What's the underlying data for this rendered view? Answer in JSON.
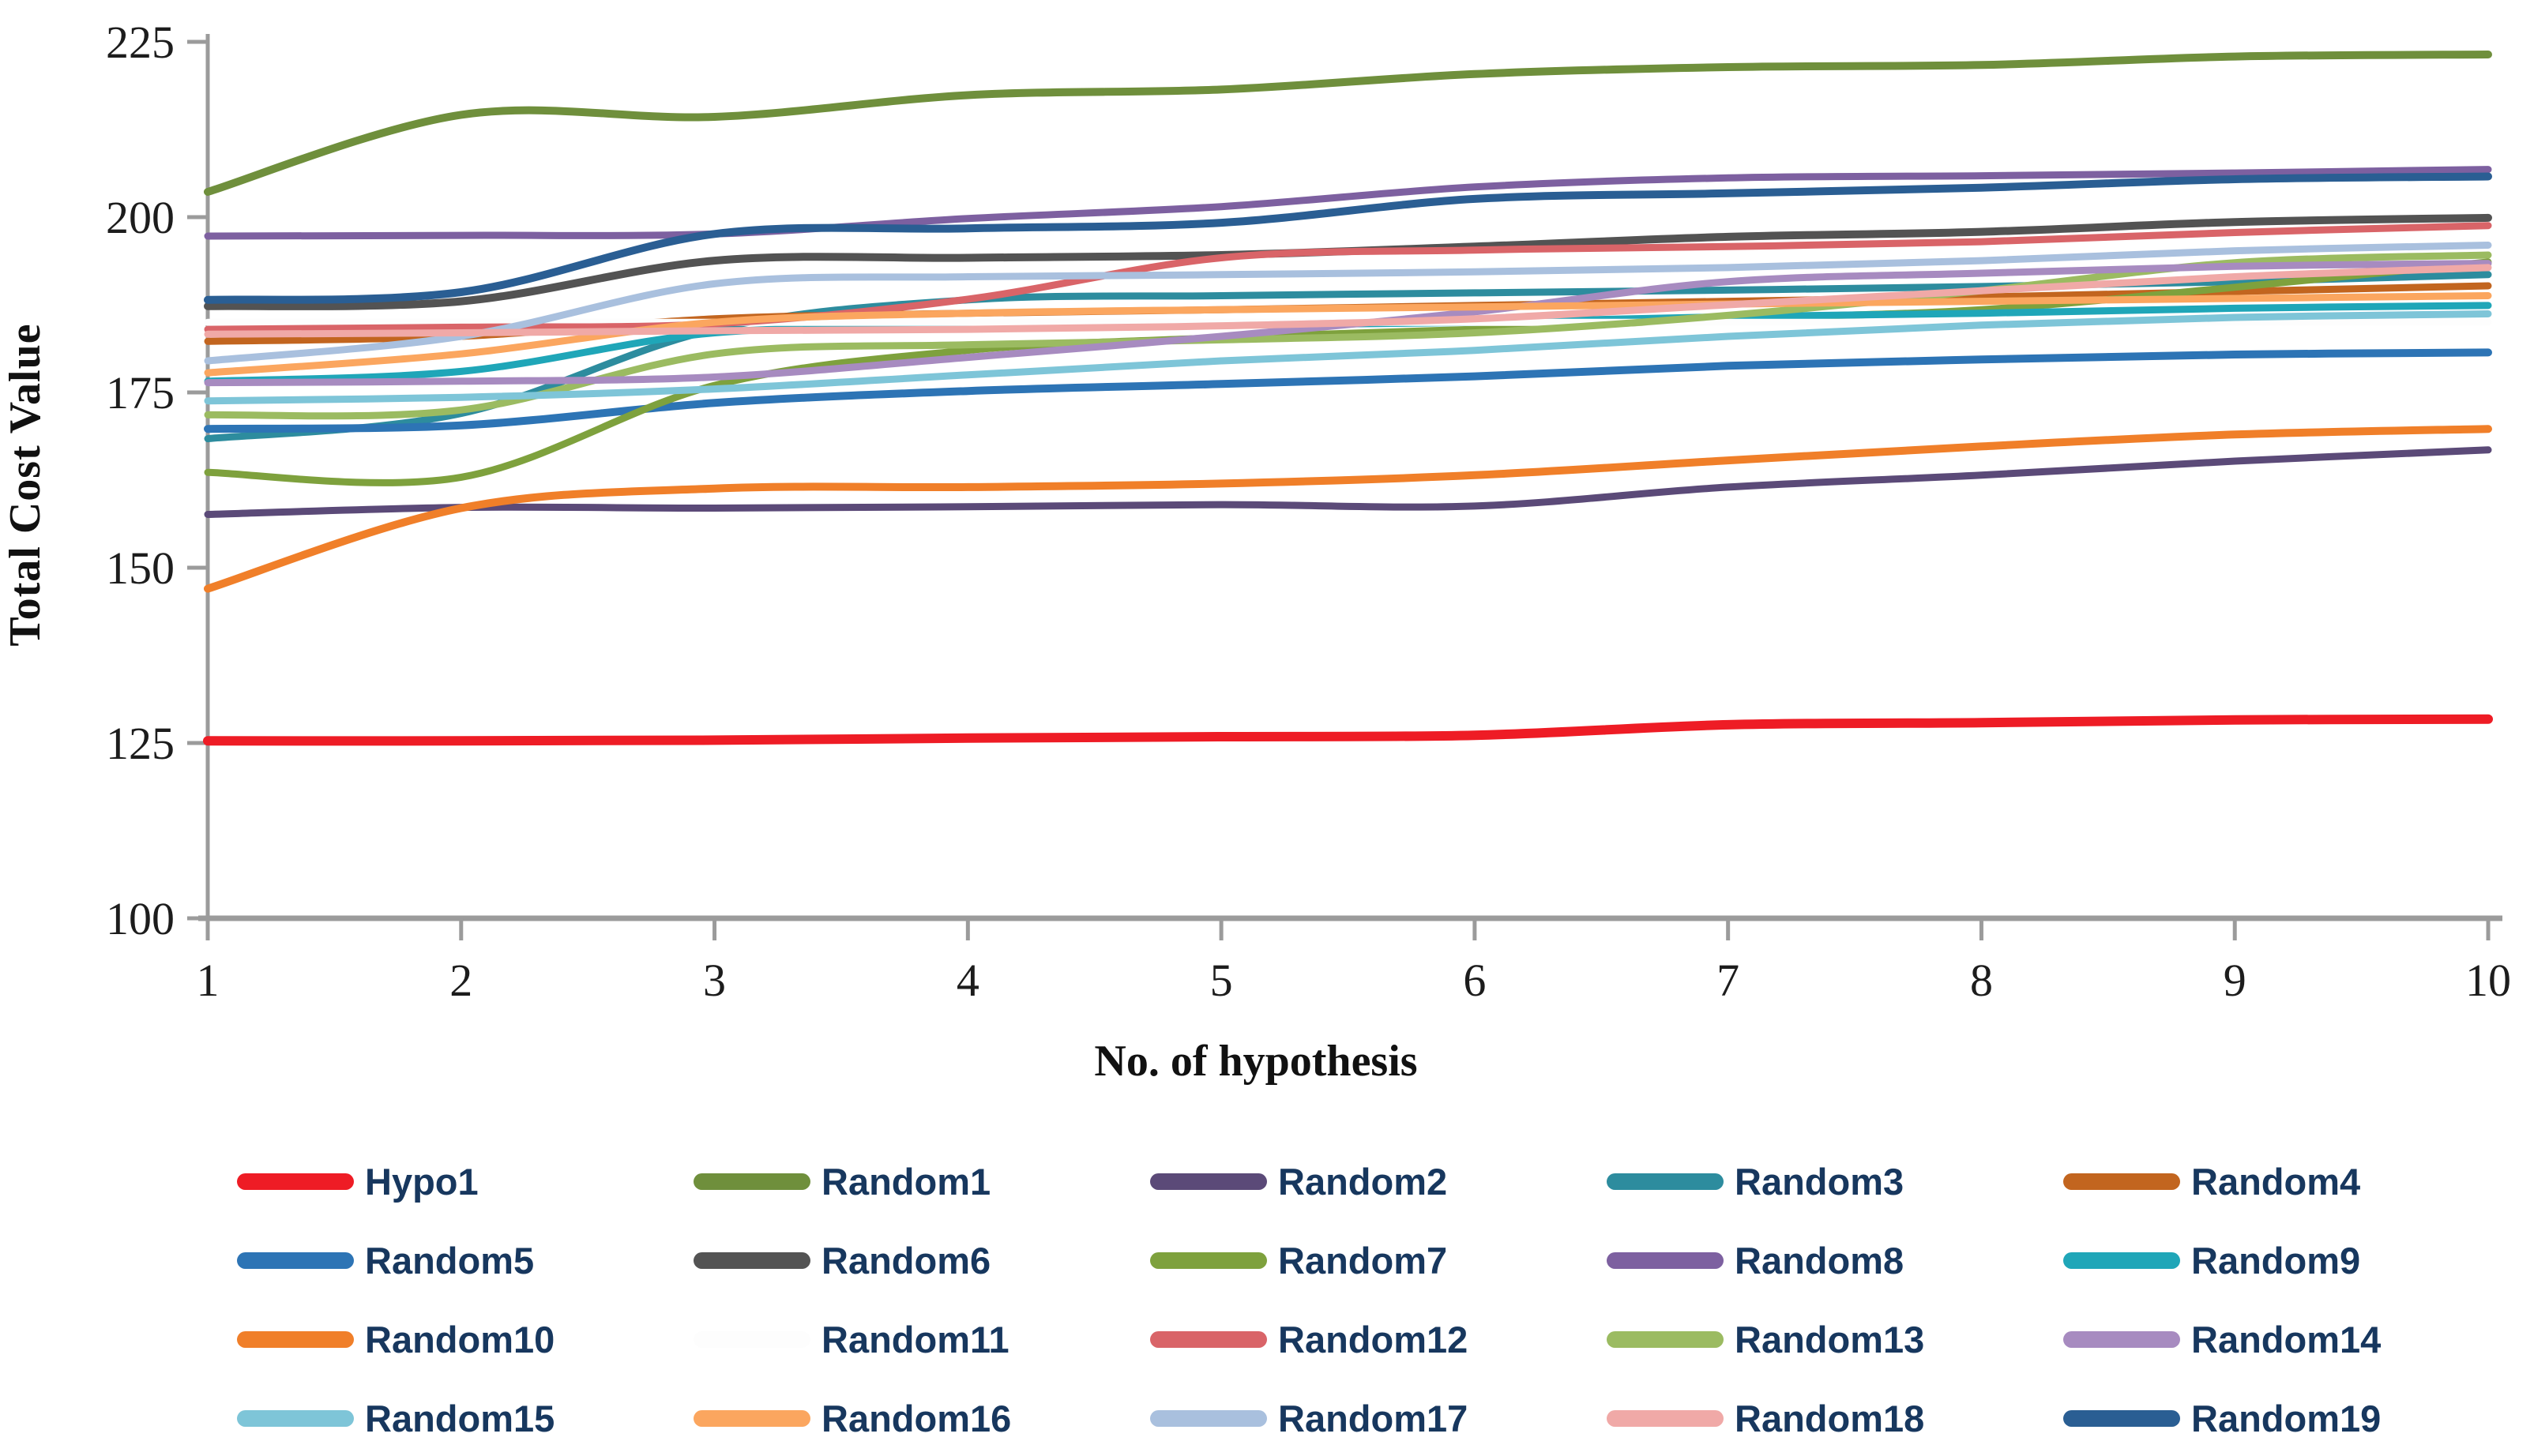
{
  "figure": {
    "background": "#ffffff",
    "axis_color": "#9b9b9b",
    "tick_text_color": "#1c1c1c",
    "legend_text_color": "#17375E"
  },
  "chart_data": {
    "type": "line",
    "smooth": true,
    "grid": false,
    "legend_position": "bottom",
    "title": "",
    "xlabel": "No. of  hypothesis",
    "ylabel": "Total Cost Value",
    "xlim": [
      1,
      10
    ],
    "ylim": [
      100,
      225
    ],
    "x_ticks": [
      1,
      2,
      3,
      4,
      5,
      6,
      7,
      8,
      9,
      10
    ],
    "y_ticks": [
      225,
      200,
      175,
      150,
      125,
      100
    ],
    "x": [
      1,
      2,
      3,
      4,
      5,
      6,
      7,
      8,
      9,
      10
    ],
    "series": [
      {
        "name": "Hypo1",
        "color": "#EE1C25",
        "width": 12,
        "values": [
          125.3,
          125.3,
          125.4,
          125.7,
          125.9,
          126.1,
          127.6,
          127.9,
          128.3,
          128.4
        ]
      },
      {
        "name": "Random1",
        "color": "#6F8F3C",
        "width": 10,
        "values": [
          203.6,
          214.6,
          214.3,
          217.4,
          218.2,
          220.4,
          221.4,
          221.7,
          222.9,
          223.2
        ]
      },
      {
        "name": "Random2",
        "color": "#5B4A78",
        "width": 9,
        "values": [
          157.6,
          158.6,
          158.5,
          158.7,
          159.0,
          158.8,
          161.5,
          163.2,
          165.2,
          166.8
        ]
      },
      {
        "name": "Random3",
        "color": "#2D8C9E",
        "width": 9,
        "values": [
          168.4,
          172.0,
          184.0,
          188.2,
          188.8,
          189.2,
          189.6,
          190.1,
          190.8,
          191.8
        ]
      },
      {
        "name": "Random4",
        "color": "#C2651F",
        "width": 9,
        "values": [
          182.3,
          183.0,
          185.5,
          186.3,
          186.8,
          187.4,
          188.0,
          188.6,
          189.4,
          190.2
        ]
      },
      {
        "name": "Random5",
        "color": "#2D74B5",
        "width": 10,
        "values": [
          169.8,
          170.3,
          173.5,
          175.2,
          176.2,
          177.3,
          178.8,
          179.7,
          180.4,
          180.7
        ]
      },
      {
        "name": "Random6",
        "color": "#535353",
        "width": 10,
        "values": [
          187.3,
          188.0,
          193.8,
          194.2,
          194.6,
          195.8,
          197.2,
          197.9,
          199.3,
          199.9
        ]
      },
      {
        "name": "Random7",
        "color": "#7EA13D",
        "width": 9,
        "values": [
          163.6,
          162.9,
          176.0,
          181.0,
          182.8,
          184.0,
          185.5,
          186.8,
          190.0,
          193.6
        ]
      },
      {
        "name": "Random8",
        "color": "#7D60A0",
        "width": 9,
        "values": [
          197.3,
          197.4,
          197.6,
          199.8,
          201.5,
          204.3,
          205.6,
          205.9,
          206.3,
          206.8
        ]
      },
      {
        "name": "Random9",
        "color": "#1FA6B8",
        "width": 9,
        "values": [
          176.6,
          178.0,
          183.5,
          184.2,
          184.6,
          185.0,
          185.8,
          186.3,
          187.0,
          187.4
        ]
      },
      {
        "name": "Random10",
        "color": "#F07F29",
        "width": 10,
        "values": [
          147.0,
          158.5,
          161.3,
          161.5,
          162.0,
          163.2,
          165.3,
          167.3,
          169.0,
          169.8
        ]
      },
      {
        "name": "Random11",
        "color": "#FDFDFD",
        "width": 9,
        "values": [
          185.0,
          185.0,
          185.0,
          185.0,
          185.0,
          185.0,
          185.0,
          185.0,
          185.0,
          185.0
        ]
      },
      {
        "name": "Random12",
        "color": "#D96468",
        "width": 9,
        "values": [
          184.0,
          184.3,
          184.8,
          188.3,
          194.2,
          195.3,
          195.8,
          196.5,
          197.8,
          198.8
        ]
      },
      {
        "name": "Random13",
        "color": "#9BBB61",
        "width": 9,
        "values": [
          171.8,
          172.5,
          180.5,
          181.8,
          182.5,
          183.5,
          186.0,
          189.5,
          193.5,
          194.6
        ]
      },
      {
        "name": "Random14",
        "color": "#A78BC0",
        "width": 9,
        "values": [
          176.4,
          176.6,
          177.2,
          180.0,
          183.0,
          186.5,
          190.8,
          192.0,
          193.0,
          193.4
        ]
      },
      {
        "name": "Random15",
        "color": "#7EC5D8",
        "width": 9,
        "values": [
          173.8,
          174.3,
          175.5,
          177.5,
          179.5,
          181.0,
          183.0,
          184.6,
          185.7,
          186.2
        ]
      },
      {
        "name": "Random16",
        "color": "#FBA65F",
        "width": 9,
        "values": [
          177.8,
          180.5,
          185.0,
          186.3,
          186.8,
          187.2,
          187.6,
          188.0,
          188.4,
          188.8
        ]
      },
      {
        "name": "Random17",
        "color": "#A9C0DE",
        "width": 9,
        "values": [
          179.5,
          183.0,
          190.5,
          191.5,
          191.8,
          192.2,
          192.8,
          193.8,
          195.2,
          196.0
        ]
      },
      {
        "name": "Random18",
        "color": "#F0A9A7",
        "width": 9,
        "values": [
          183.3,
          183.5,
          183.8,
          184.0,
          184.5,
          185.5,
          187.5,
          189.5,
          191.5,
          192.8
        ]
      },
      {
        "name": "Random19",
        "color": "#2A5E93",
        "width": 10,
        "values": [
          188.2,
          189.3,
          197.6,
          198.4,
          199.2,
          202.6,
          203.4,
          204.2,
          205.4,
          205.8
        ]
      }
    ]
  },
  "legend": {
    "columns": 5,
    "item_order": [
      "Hypo1",
      "Random1",
      "Random2",
      "Random3",
      "Random4",
      "Random5",
      "Random6",
      "Random7",
      "Random8",
      "Random9",
      "Random10",
      "Random11",
      "Random12",
      "Random13",
      "Random14",
      "Random15",
      "Random16",
      "Random17",
      "Random18",
      "Random19"
    ]
  }
}
